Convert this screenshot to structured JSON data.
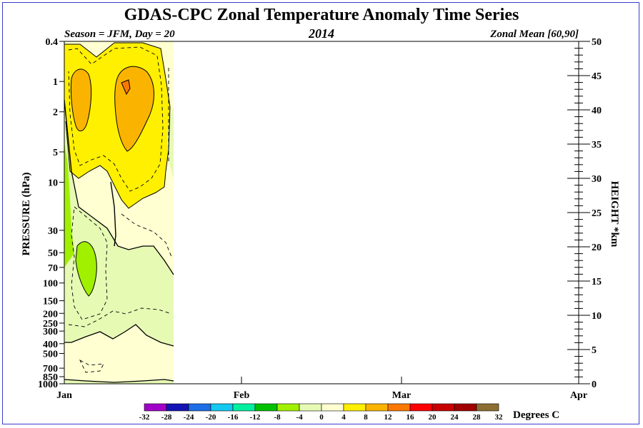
{
  "chart_data": {
    "type": "heatmap",
    "title": "GDAS-CPC Zonal Temperature Anomaly Time Series",
    "subtitle_left": "Season = JFM, Day =  20",
    "subtitle_center": "2014",
    "subtitle_right": "Zonal Mean [60,90]",
    "ylabel_left": "PRESSURE (hPa)",
    "ylabel_right": "HEIGHT *km",
    "xlabel": "Degrees C",
    "x_ticks": [
      "Jan",
      "Feb",
      "Mar",
      "Apr"
    ],
    "x_range_days": [
      1,
      91
    ],
    "data_days_shown": 20,
    "pressure_ticks": [
      "0.4",
      "1",
      "2",
      "5",
      "10",
      "30",
      "50",
      "70",
      "100",
      "150",
      "200",
      "250",
      "300",
      "400",
      "500",
      "700",
      "850",
      "1000"
    ],
    "pressure_values": [
      0.4,
      1,
      2,
      5,
      10,
      30,
      50,
      70,
      100,
      150,
      200,
      250,
      300,
      400,
      500,
      700,
      850,
      1000
    ],
    "y_range_hpa": [
      1000,
      0.4
    ],
    "height_ticks": [
      "0",
      "5",
      "10",
      "15",
      "20",
      "25",
      "30",
      "35",
      "40",
      "45",
      "50"
    ],
    "height_values": [
      0,
      5,
      10,
      15,
      20,
      25,
      30,
      35,
      40,
      45,
      50
    ],
    "colorbar": {
      "labels": [
        "-32",
        "-28",
        "-24",
        "-20",
        "-16",
        "-12",
        "-8",
        "-4",
        "0",
        "4",
        "8",
        "12",
        "16",
        "20",
        "24",
        "28",
        "32"
      ],
      "colors": [
        "#a000c8",
        "#1414b4",
        "#1e6ee6",
        "#14c8f0",
        "#00f0a0",
        "#00c000",
        "#a0f000",
        "#e6fab4",
        "#ffffd2",
        "#fff000",
        "#fab400",
        "#fa7800",
        "#ff0000",
        "#c80000",
        "#a00000",
        "#8c6e32"
      ]
    },
    "anomaly_regions": [
      {
        "level": "0 to 4",
        "color": "#ffffd2",
        "extent": "Jan 1-20, 1000-0.4 hPa background"
      },
      {
        "level": "4 to 8",
        "color": "#fff000",
        "extent": "Jan 1-20, 0.4-12 hPa"
      },
      {
        "level": "8 to 12",
        "color": "#fab400",
        "extent": "Jan 3-5 and Jan 9-14, 0.5-5 hPa"
      },
      {
        "level": "12 to 16",
        "color": "#fa7800",
        "extent": "Jan 11, near 1 hPa"
      },
      {
        "level": "-4 to 0",
        "color": "#e6fab4",
        "extent": "Jan 1-20, 30-300 hPa"
      },
      {
        "level": "-8 to -4",
        "color": "#a0f000",
        "extent": "Jan 2-4, 60-130 hPa and Jan 1, 5-50 hPa"
      }
    ]
  }
}
